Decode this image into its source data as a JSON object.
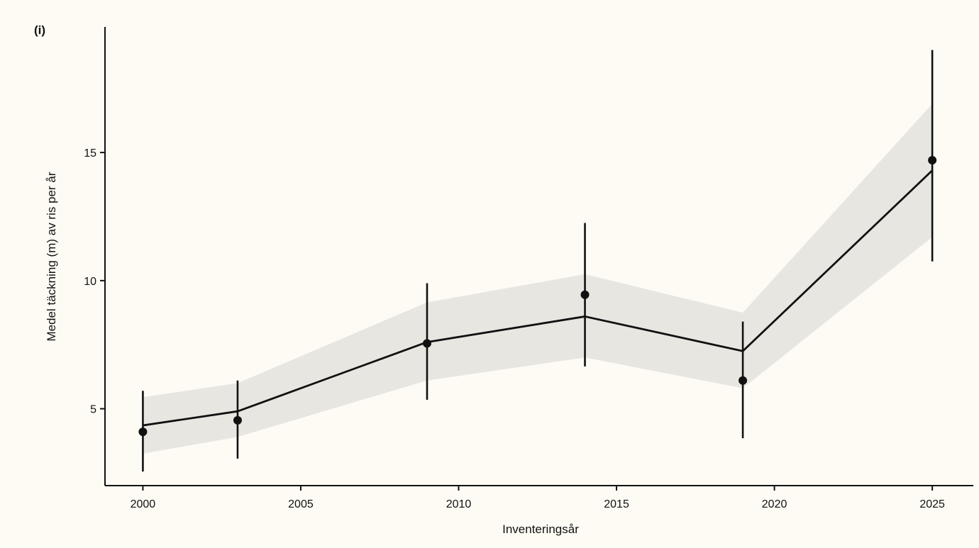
{
  "chart_data": {
    "type": "line",
    "panel_label": "(i)",
    "xlabel": "Inventeringsår",
    "ylabel": "Medel täckning (m) av ris per år",
    "xlim": [
      1998.8,
      2026.3
    ],
    "ylim": [
      2.0,
      19.9
    ],
    "x_ticks": [
      2000,
      2005,
      2010,
      2015,
      2020,
      2025
    ],
    "y_ticks": [
      5,
      10,
      15
    ],
    "grid": false,
    "legend": "none",
    "colors": {
      "background": "#fdfbf4",
      "ribbon": "#e8e6e1",
      "line": "#111111",
      "points": "#111111"
    },
    "series": [
      {
        "kind": "fitted_line_with_confidence_band",
        "x": [
          2000,
          2003,
          2009,
          2014,
          2019,
          2025
        ],
        "fit": [
          4.35,
          4.9,
          7.6,
          8.6,
          7.25,
          14.3
        ],
        "lower": [
          3.25,
          3.9,
          6.1,
          7.0,
          5.8,
          11.7
        ],
        "upper": [
          5.45,
          6.0,
          9.15,
          10.25,
          8.75,
          16.9
        ]
      },
      {
        "kind": "observed_mean_with_error_bars",
        "x": [
          2000,
          2003,
          2009,
          2014,
          2019,
          2025
        ],
        "y": [
          4.1,
          4.55,
          7.55,
          9.45,
          6.1,
          14.7
        ],
        "lower": [
          2.55,
          3.05,
          5.35,
          6.65,
          3.85,
          10.75
        ],
        "upper": [
          5.7,
          6.1,
          9.9,
          12.25,
          8.4,
          19.0
        ]
      }
    ]
  }
}
